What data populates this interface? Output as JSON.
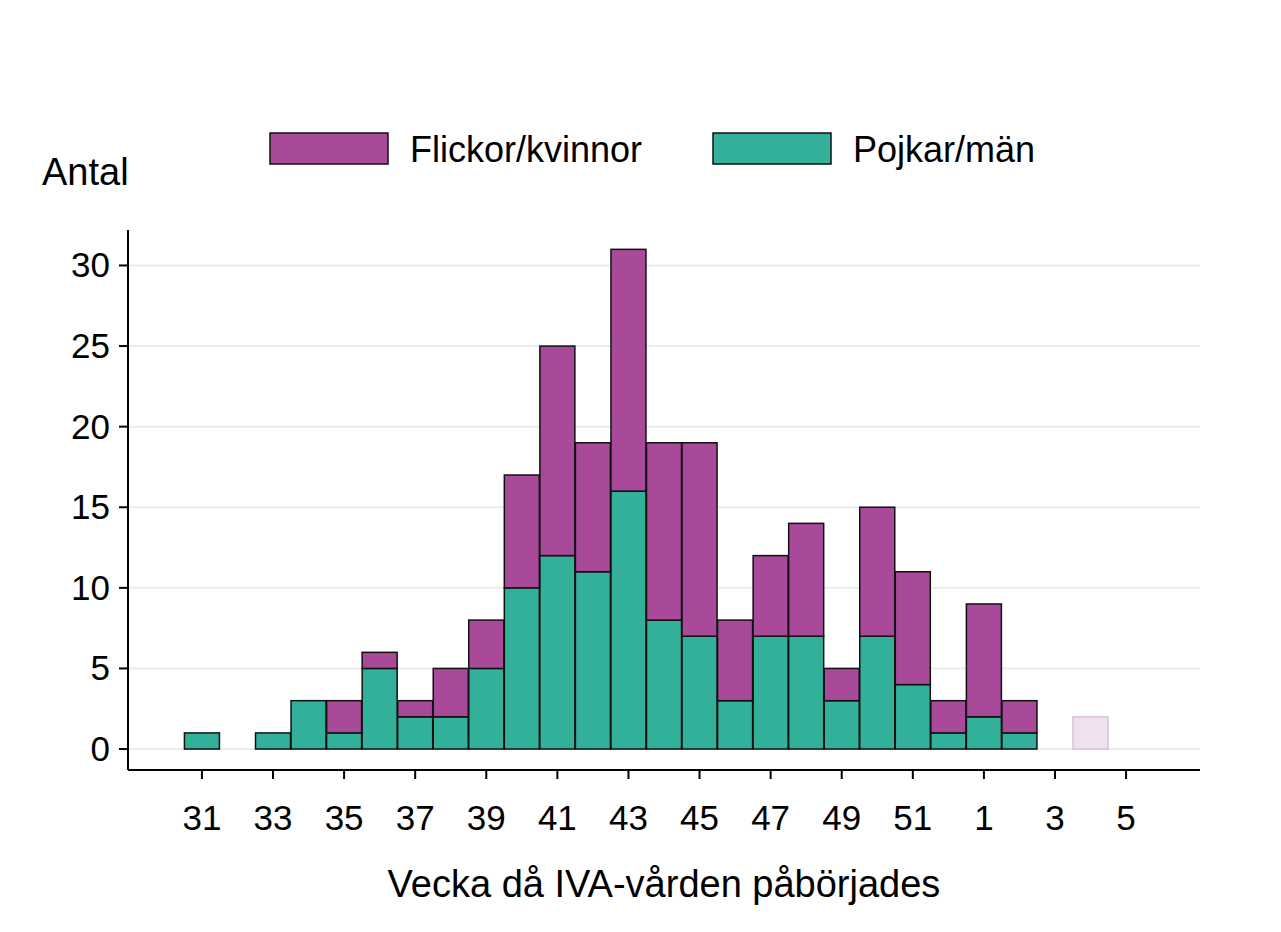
{
  "chart_data": {
    "type": "bar",
    "stacked": true,
    "grid": true,
    "legend": "top",
    "y_label": "Antal",
    "x_label": "Vecka då IVA-vården påbörjades",
    "categories": [
      "31",
      null,
      "33",
      null,
      "35",
      null,
      "37",
      null,
      "39",
      null,
      "41",
      null,
      "43",
      null,
      "45",
      null,
      "47",
      null,
      "49",
      null,
      "51",
      null,
      "1",
      null,
      "3",
      null,
      "5"
    ],
    "series": [
      {
        "name": "Pojkar/män",
        "color": "#33b09a",
        "values": [
          1,
          0,
          1,
          3,
          1,
          5,
          2,
          2,
          5,
          10,
          12,
          11,
          16,
          8,
          7,
          3,
          7,
          7,
          3,
          7,
          4,
          1,
          2,
          1,
          0,
          0,
          0
        ]
      },
      {
        "name": "Flickor/kvinnor",
        "color": "#a8499a",
        "colors": [
          "#a8499a",
          "#a8499a",
          "#a8499a",
          "#a8499a",
          "#a8499a",
          "#a8499a",
          "#a8499a",
          "#a8499a",
          "#a8499a",
          "#a8499a",
          "#a8499a",
          "#a8499a",
          "#a8499a",
          "#a8499a",
          "#a8499a",
          "#a8499a",
          "#a8499a",
          "#a8499a",
          "#a8499a",
          "#a8499a",
          "#a8499a",
          "#a8499a",
          "#a8499a",
          "#a8499a",
          "#a8499a",
          "#f0e1f0",
          "#a8499a"
        ],
        "values": [
          0,
          0,
          0,
          0,
          2,
          1,
          1,
          3,
          3,
          7,
          13,
          8,
          15,
          11,
          12,
          5,
          5,
          7,
          2,
          8,
          7,
          2,
          7,
          2,
          0,
          2,
          0
        ]
      }
    ],
    "ylim": [
      -1.3,
      32.2
    ],
    "yticks": [
      0,
      5,
      10,
      15,
      20,
      25,
      30
    ]
  }
}
